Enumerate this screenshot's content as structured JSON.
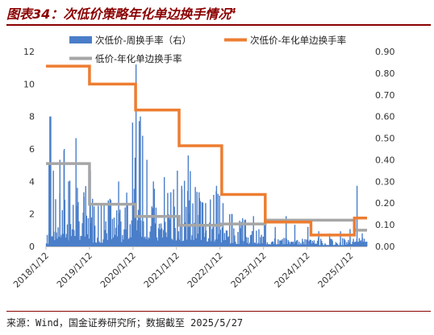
{
  "title": "图表34：次低价策略年化单边换手情况",
  "title_sup": "4",
  "source": "来源：Wind，国金证券研究所；数据截至 2025/5/27",
  "colors": {
    "weekly_bar": "#4a7ec9",
    "annual_sub_low": "#ed7d31",
    "annual_low": "#a6a6a6",
    "title": "#8b0000"
  },
  "chart_data": {
    "type": "bar",
    "x_tick_labels": [
      "2018/1/12",
      "2019/1/12",
      "2020/1/12",
      "2021/1/12",
      "2022/1/12",
      "2023/1/12",
      "2024/1/12",
      "2025/1/12"
    ],
    "x_range": [
      2018.03,
      2025.41
    ],
    "y_left": {
      "min": 0,
      "max": 12,
      "ticks": [
        0,
        2,
        4,
        6,
        8,
        10,
        12
      ]
    },
    "y_right": {
      "min": 0,
      "max": 0.9,
      "ticks": [
        "0.00",
        "0.10",
        "0.20",
        "0.30",
        "0.40",
        "0.50",
        "0.60",
        "0.70",
        "0.80",
        "0.90"
      ]
    },
    "grid": false,
    "legend": "top",
    "series": [
      {
        "name": "次低价-周换手率（右）",
        "type": "bar",
        "axis": "right",
        "note_peaks": [
          [
            2018.1,
            0.38
          ],
          [
            2018.12,
            0.6
          ],
          [
            2018.14,
            0.6
          ],
          [
            2018.2,
            0.35
          ],
          [
            2018.35,
            0.4
          ],
          [
            2018.45,
            0.45
          ],
          [
            2018.55,
            0.3
          ],
          [
            2018.72,
            0.5
          ],
          [
            2018.9,
            0.25
          ],
          [
            2019.05,
            0.35
          ],
          [
            2019.1,
            0.22
          ],
          [
            2019.3,
            0.2
          ],
          [
            2019.5,
            0.22
          ],
          [
            2019.7,
            0.3
          ],
          [
            2019.85,
            0.18
          ],
          [
            2020.1,
            0.84
          ],
          [
            2020.2,
            0.6
          ],
          [
            2020.35,
            0.4
          ],
          [
            2020.5,
            0.3
          ],
          [
            2020.75,
            0.32
          ],
          [
            2020.9,
            0.25
          ],
          [
            2021.05,
            0.35
          ],
          [
            2021.15,
            0.28
          ],
          [
            2021.3,
            0.42
          ],
          [
            2021.55,
            0.25
          ],
          [
            2021.7,
            0.2
          ],
          [
            2021.95,
            0.28
          ],
          [
            2022.1,
            0.2
          ],
          [
            2022.3,
            0.15
          ],
          [
            2022.55,
            0.13
          ],
          [
            2022.8,
            0.14
          ],
          [
            2023.05,
            0.12
          ],
          [
            2023.3,
            0.09
          ],
          [
            2023.55,
            0.14
          ],
          [
            2023.75,
            0.1
          ],
          [
            2024.05,
            0.09
          ],
          [
            2024.3,
            0.07
          ],
          [
            2024.55,
            0.06
          ],
          [
            2024.8,
            0.07
          ],
          [
            2025.02,
            0.08
          ],
          [
            2025.18,
            0.28
          ],
          [
            2025.3,
            0.06
          ]
        ]
      },
      {
        "name": "次低价-年化单边换手率",
        "type": "step",
        "axis": "left",
        "points": [
          [
            2018.03,
            11.1
          ],
          [
            2019.03,
            10.0
          ],
          [
            2020.09,
            8.4
          ],
          [
            2021.09,
            6.2
          ],
          [
            2022.07,
            3.2
          ],
          [
            2023.07,
            1.5
          ],
          [
            2024.12,
            0.7
          ],
          [
            2025.12,
            1.75
          ],
          [
            2025.41,
            1.75
          ]
        ]
      },
      {
        "name": "低价-年化单边换手率",
        "type": "step",
        "axis": "left",
        "points": [
          [
            2018.03,
            5.1
          ],
          [
            2019.03,
            2.6
          ],
          [
            2020.09,
            1.85
          ],
          [
            2021.09,
            1.3
          ],
          [
            2022.07,
            1.38
          ],
          [
            2023.07,
            1.62
          ],
          [
            2024.12,
            1.62
          ],
          [
            2025.12,
            1.0
          ],
          [
            2025.41,
            1.0
          ]
        ]
      }
    ]
  }
}
